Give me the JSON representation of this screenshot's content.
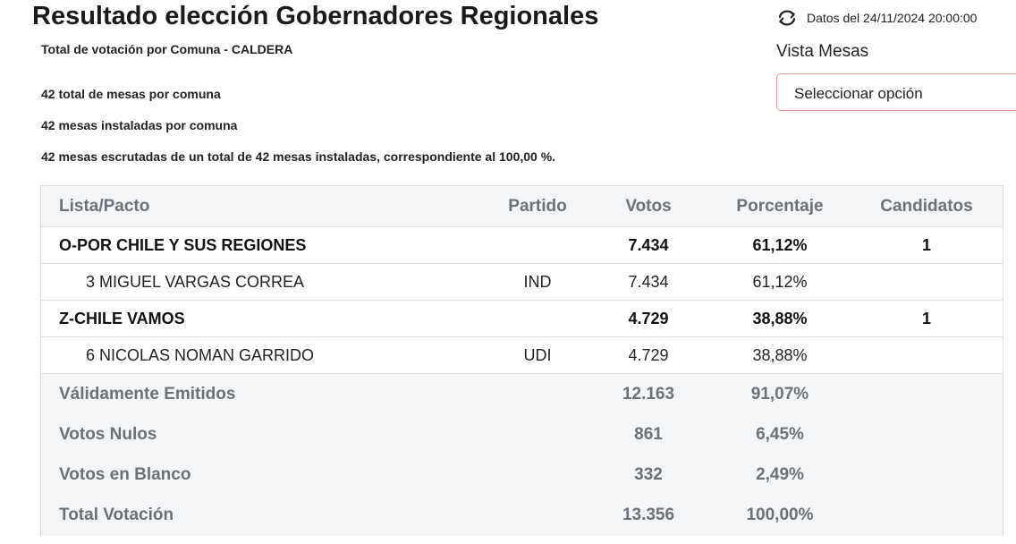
{
  "header": {
    "title": "Resultado elección Gobernadores Regionales",
    "subtitle": "Total de votación por Comuna - CALDERA",
    "info": [
      "42 total de mesas por comuna",
      "42 mesas instaladas por comuna",
      "42 mesas escrutadas de un total de 42 mesas instaladas, correspondiente al 100,00 %."
    ]
  },
  "refresh": {
    "icon": "refresh-icon",
    "label": "Datos del 24/11/2024 20:00:00"
  },
  "vista": {
    "label": "Vista Mesas",
    "select_value": "Seleccionar opción",
    "border_color": "#e59a9a"
  },
  "table": {
    "columns": [
      "Lista/Pacto",
      "Partido",
      "Votos",
      "Porcentaje",
      "Candidatos"
    ],
    "rows": [
      {
        "type": "pact",
        "lista": "O-POR CHILE Y SUS REGIONES",
        "partido": "",
        "votos": "7.434",
        "porcentaje": "61,12%",
        "candidatos": "1"
      },
      {
        "type": "candidate",
        "lista": "3 MIGUEL VARGAS CORREA",
        "partido": "IND",
        "votos": "7.434",
        "porcentaje": "61,12%",
        "candidatos": ""
      },
      {
        "type": "pact",
        "lista": "Z-CHILE VAMOS",
        "partido": "",
        "votos": "4.729",
        "porcentaje": "38,88%",
        "candidatos": "1"
      },
      {
        "type": "candidate",
        "lista": "6 NICOLAS NOMAN GARRIDO",
        "partido": "UDI",
        "votos": "4.729",
        "porcentaje": "38,88%",
        "candidatos": ""
      }
    ],
    "summary": [
      {
        "label": "Válidamente Emitidos",
        "votos": "12.163",
        "porcentaje": "91,07%"
      },
      {
        "label": "Votos Nulos",
        "votos": "861",
        "porcentaje": "6,45%"
      },
      {
        "label": "Votos en Blanco",
        "votos": "332",
        "porcentaje": "2,49%"
      },
      {
        "label": "Total Votación",
        "votos": "13.356",
        "porcentaje": "100,00%"
      }
    ]
  }
}
